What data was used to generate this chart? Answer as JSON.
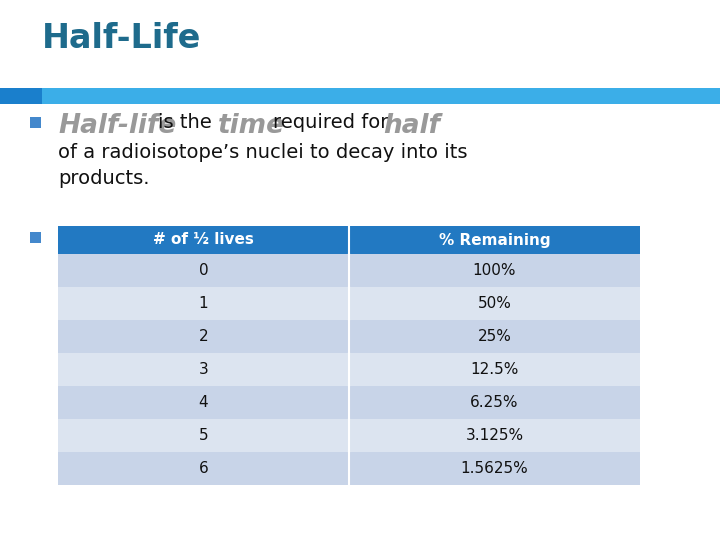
{
  "title": "Half-Life",
  "title_color": "#1E6B8C",
  "title_fontsize": 24,
  "bg_color": "#FFFFFF",
  "accent_dark": "#1A7FCC",
  "accent_light": "#3BAEE8",
  "bullet_color": "#4488CC",
  "header_bg": "#2279C2",
  "header_text_color": "#FFFFFF",
  "row_colors": [
    "#C8D4E8",
    "#DCE4F0"
  ],
  "table_headers": [
    "# of ½ lives",
    "% Remaining"
  ],
  "table_data": [
    [
      "0",
      "100%"
    ],
    [
      "1",
      "50%"
    ],
    [
      "2",
      "25%"
    ],
    [
      "3",
      "12.5%"
    ],
    [
      "4",
      "6.25%"
    ],
    [
      "5",
      "3.125%"
    ],
    [
      "6",
      "1.5625%"
    ]
  ],
  "highlight_color": "#999999",
  "body_text_color": "#111111",
  "half_life_text": "Half-life",
  "time_text": "time",
  "half_text": "half",
  "is_the_text": "is the",
  "req_for_text": "required for",
  "line2_text": "of a radioisotope’s nuclei to decay into its",
  "line3_text": "products."
}
